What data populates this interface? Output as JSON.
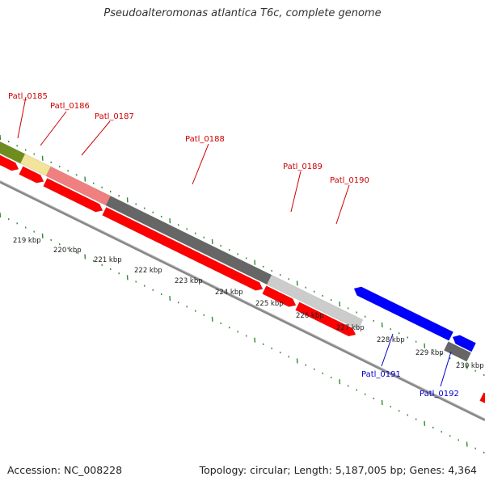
{
  "header": {
    "title": "Pseudoalteromonas atlantica T6c, complete genome"
  },
  "footer": {
    "accession": "Accession: NC_008228",
    "summary": "Topology: circular; Length: 5,187,005 bp; Genes: 4,364"
  },
  "colors": {
    "cds": "#ff0000",
    "cds_reverse": "#0000ff",
    "gene_olive": "#6f8c1e",
    "gene_yellow": "#f2e49a",
    "gene_pink": "#f08080",
    "gene_dark": "#666666",
    "gene_light": "#cccccc",
    "tick": "#2e8b2e",
    "axis": "#888888",
    "forward_label": "#cc0000",
    "reverse_label": "#0000cc"
  },
  "scale_labels": [
    "219 kbp",
    "220 kbp",
    "221 kbp",
    "222 kbp",
    "223 kbp",
    "224 kbp",
    "225 kbp",
    "226 kbp",
    "227 kbp",
    "228 kbp",
    "229 kbp",
    "230 kbp"
  ],
  "genes_forward": [
    {
      "name": "Patl_0185"
    },
    {
      "name": "Patl_0186"
    },
    {
      "name": "Patl_0187"
    },
    {
      "name": "Patl_0188"
    },
    {
      "name": "Patl_0189"
    },
    {
      "name": "Patl_0190"
    }
  ],
  "genes_reverse": [
    {
      "name": "Patl_0191"
    },
    {
      "name": "Patl_0192"
    }
  ]
}
